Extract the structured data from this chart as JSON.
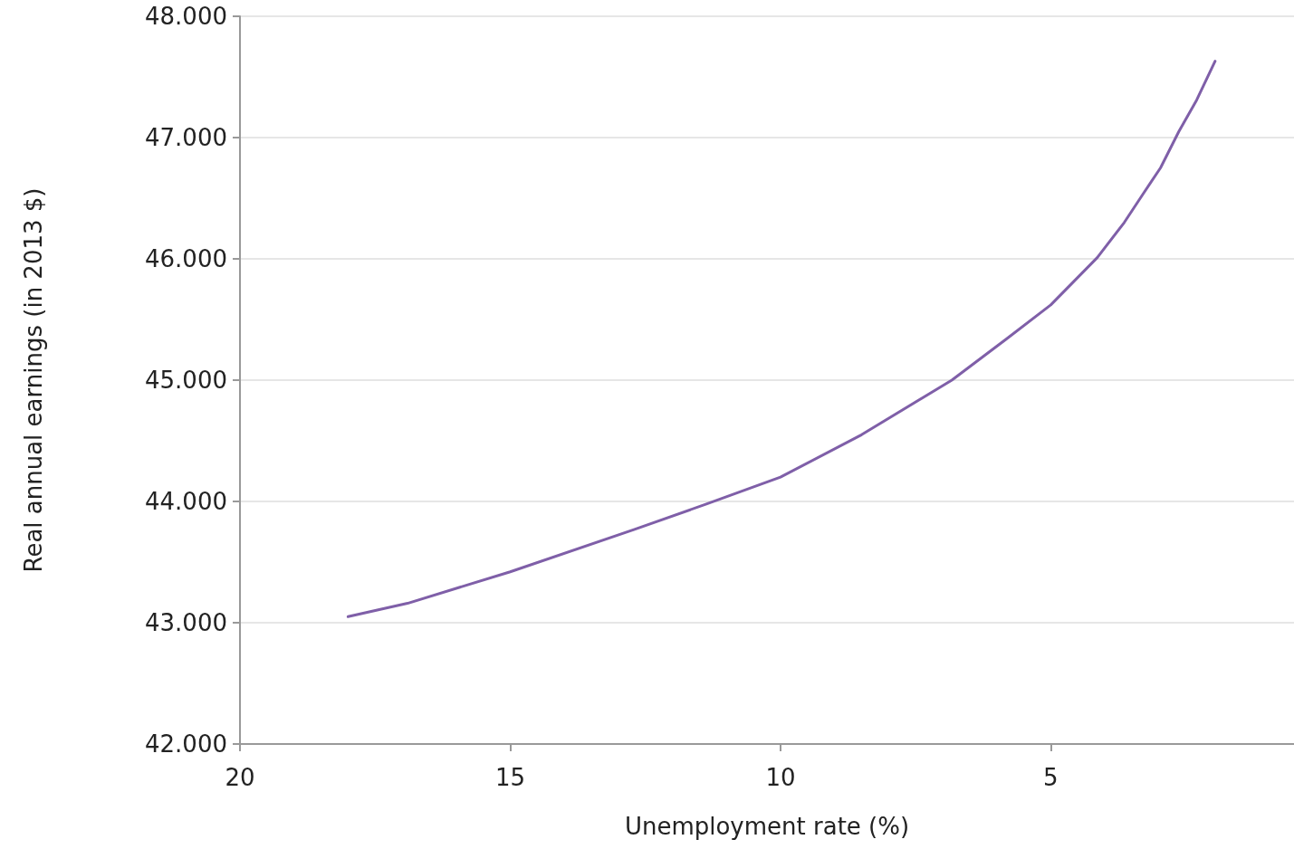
{
  "chart_data": {
    "type": "line",
    "xlabel": "Unemployment rate (%)",
    "ylabel": "Real annual earnings (in 2013 $)",
    "x": [
      18.0,
      16.9,
      15.0,
      12.7,
      11.36,
      10.0,
      8.5,
      6.83,
      5.82,
      5.0,
      4.14,
      3.64,
      3.3,
      2.97,
      2.63,
      2.3,
      1.96
    ],
    "series": [
      {
        "color": "#7f5fa8",
        "values": [
          43050,
          43160,
          43420,
          43770,
          43980,
          44200,
          44550,
          45000,
          45340,
          45620,
          46010,
          46300,
          46530,
          46750,
          47050,
          47310,
          47630
        ]
      }
    ],
    "xlim": [
      20,
      0.5
    ],
    "xticks": [
      20,
      15,
      10,
      5
    ],
    "ylim": [
      42000,
      48000
    ],
    "yticks": [
      {
        "value": 42000,
        "label": "42.000"
      },
      {
        "value": 43000,
        "label": "43.000"
      },
      {
        "value": 44000,
        "label": "44.000"
      },
      {
        "value": 45000,
        "label": "45.000"
      },
      {
        "value": 46000,
        "label": "46.000"
      },
      {
        "value": 47000,
        "label": "47.000"
      },
      {
        "value": 48000,
        "label": "48.000"
      }
    ],
    "grid": "y",
    "marker": "none",
    "line_style": "solid"
  }
}
